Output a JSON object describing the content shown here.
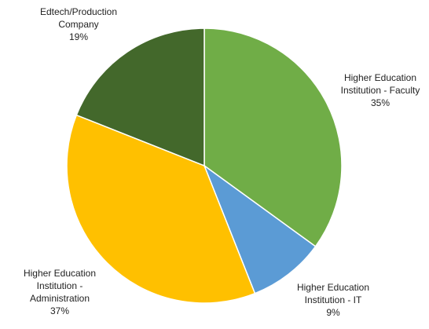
{
  "chart_data": {
    "type": "pie",
    "start_angle_deg": 0,
    "direction": "clockwise",
    "slices": [
      {
        "label_lines": [
          "Higher Education",
          "Institution - Faculty"
        ],
        "value": 35,
        "pct_text": "35%",
        "color": "#70AD47"
      },
      {
        "label_lines": [
          "Higher Education",
          "Institution - IT"
        ],
        "value": 9,
        "pct_text": "9%",
        "color": "#5B9BD5"
      },
      {
        "label_lines": [
          "Higher Education",
          "Institution -",
          "Administration"
        ],
        "value": 37,
        "pct_text": "37%",
        "color": "#FFC000"
      },
      {
        "label_lines": [
          "Edtech/Production",
          "Company"
        ],
        "value": 19,
        "pct_text": "19%",
        "color": "#43682B"
      }
    ]
  }
}
